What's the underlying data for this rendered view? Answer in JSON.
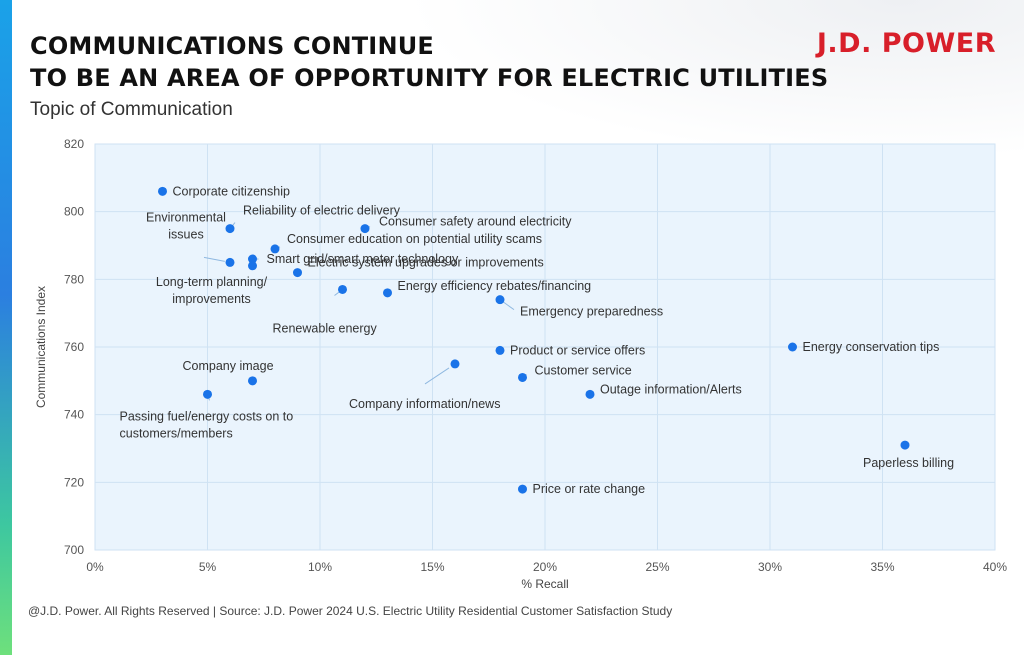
{
  "header": {
    "title_line1": "COMMUNICATIONS CONTINUE",
    "title_line2": "TO BE AN AREA OF OPPORTUNITY FOR ELECTRIC UTILITIES",
    "subtitle": "Topic of Communication",
    "logo": "J.D. POWER"
  },
  "footer": {
    "source": "@J.D. Power. All Rights Reserved | Source: J.D. Power 2024 U.S. Electric Utility Residential Customer Satisfaction Study"
  },
  "colors": {
    "point": "#1a73e8",
    "plot_bg": "#eaf4fd",
    "grid": "#cfe2f3",
    "brand": "#d81f2a"
  },
  "chart_data": {
    "type": "scatter",
    "title": "COMMUNICATIONS CONTINUE TO BE AN AREA OF OPPORTUNITY FOR ELECTRIC UTILITIES",
    "subtitle": "Topic of Communication",
    "xlabel": "% Recall",
    "ylabel": "Communications Index",
    "xlim": [
      0,
      40
    ],
    "ylim": [
      700,
      820
    ],
    "x_ticks": [
      "0%",
      "5%",
      "10%",
      "15%",
      "20%",
      "25%",
      "30%",
      "35%",
      "40%"
    ],
    "y_ticks": [
      "700",
      "720",
      "740",
      "760",
      "780",
      "800",
      "820"
    ],
    "grid": true,
    "points": [
      {
        "label": "Corporate citizenship",
        "x": 3,
        "y": 806
      },
      {
        "label": "Reliability of electric delivery",
        "x": 6,
        "y": 795
      },
      {
        "label": "Consumer safety around electricity",
        "x": 12,
        "y": 795
      },
      {
        "label": "Consumer education on potential utility scams",
        "x": 8,
        "y": 789
      },
      {
        "label": "Environmental issues",
        "x": 6,
        "y": 785
      },
      {
        "label": "Smart grid/smart meter technology",
        "x": 7,
        "y": 786
      },
      {
        "label": "Long-term planning/ improvements",
        "x": 7,
        "y": 784
      },
      {
        "label": "Electric system upgrades or improvements",
        "x": 9,
        "y": 782
      },
      {
        "label": "Renewable energy",
        "x": 11,
        "y": 777
      },
      {
        "label": "Energy efficiency rebates/financing",
        "x": 13,
        "y": 776
      },
      {
        "label": "Emergency preparedness",
        "x": 18,
        "y": 774
      },
      {
        "label": "Product or service offers",
        "x": 18,
        "y": 759
      },
      {
        "label": "Energy conservation tips",
        "x": 31,
        "y": 760
      },
      {
        "label": "Company information/news",
        "x": 16,
        "y": 755
      },
      {
        "label": "Company image",
        "x": 7,
        "y": 750
      },
      {
        "label": "Customer service",
        "x": 19,
        "y": 751
      },
      {
        "label": "Passing fuel/energy costs on to customers/members",
        "x": 5,
        "y": 746
      },
      {
        "label": "Outage information/Alerts",
        "x": 22,
        "y": 746
      },
      {
        "label": "Paperless billing",
        "x": 36,
        "y": 731
      },
      {
        "label": "Price or rate change",
        "x": 19,
        "y": 718
      }
    ]
  }
}
